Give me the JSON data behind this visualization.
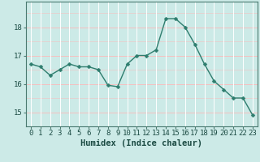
{
  "x": [
    0,
    1,
    2,
    3,
    4,
    5,
    6,
    7,
    8,
    9,
    10,
    11,
    12,
    13,
    14,
    15,
    16,
    17,
    18,
    19,
    20,
    21,
    22,
    23
  ],
  "y": [
    16.7,
    16.6,
    16.3,
    16.5,
    16.7,
    16.6,
    16.6,
    16.5,
    15.95,
    15.9,
    16.7,
    17.0,
    17.0,
    17.2,
    18.3,
    18.3,
    18.0,
    17.4,
    16.7,
    16.1,
    15.8,
    15.5,
    15.5,
    14.9
  ],
  "line_color": "#2e7d6e",
  "marker": "D",
  "marker_size": 2.5,
  "bg_color": "#cceae7",
  "grid_color": "#ffffff",
  "xlabel": "Humidex (Indice chaleur)",
  "xlim": [
    -0.5,
    23.5
  ],
  "ylim": [
    14.5,
    18.9
  ],
  "yticks": [
    15,
    16,
    17,
    18
  ],
  "xticks": [
    0,
    1,
    2,
    3,
    4,
    5,
    6,
    7,
    8,
    9,
    10,
    11,
    12,
    13,
    14,
    15,
    16,
    17,
    18,
    19,
    20,
    21,
    22,
    23
  ],
  "xlabel_fontsize": 7.5,
  "tick_fontsize": 6.5
}
